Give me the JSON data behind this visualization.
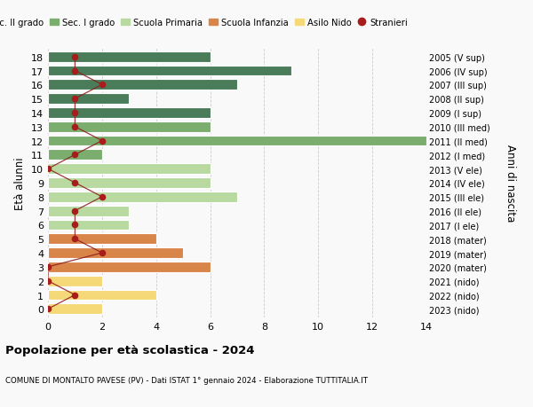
{
  "ages": [
    18,
    17,
    16,
    15,
    14,
    13,
    12,
    11,
    10,
    9,
    8,
    7,
    6,
    5,
    4,
    3,
    2,
    1,
    0
  ],
  "years": [
    "2005 (V sup)",
    "2006 (IV sup)",
    "2007 (III sup)",
    "2008 (II sup)",
    "2009 (I sup)",
    "2010 (III med)",
    "2011 (II med)",
    "2012 (I med)",
    "2013 (V ele)",
    "2014 (IV ele)",
    "2015 (III ele)",
    "2016 (II ele)",
    "2017 (I ele)",
    "2018 (mater)",
    "2019 (mater)",
    "2020 (mater)",
    "2021 (nido)",
    "2022 (nido)",
    "2023 (nido)"
  ],
  "bar_values": [
    6,
    9,
    7,
    3,
    6,
    6,
    14,
    2,
    6,
    6,
    7,
    3,
    3,
    4,
    5,
    6,
    2,
    4,
    2
  ],
  "bar_colors": [
    "#4a7c59",
    "#4a7c59",
    "#4a7c59",
    "#4a7c59",
    "#4a7c59",
    "#7aad6e",
    "#7aad6e",
    "#7aad6e",
    "#b8d9a0",
    "#b8d9a0",
    "#b8d9a0",
    "#b8d9a0",
    "#b8d9a0",
    "#d9854a",
    "#d9854a",
    "#d9854a",
    "#f5d878",
    "#f5d878",
    "#f5d878"
  ],
  "stranieri_x": [
    1,
    1,
    2,
    1,
    1,
    1,
    2,
    1,
    0,
    1,
    2,
    1,
    1,
    1,
    2,
    0,
    0,
    1,
    0
  ],
  "legend_labels": [
    "Sec. II grado",
    "Sec. I grado",
    "Scuola Primaria",
    "Scuola Infanzia",
    "Asilo Nido",
    "Stranieri"
  ],
  "legend_colors": [
    "#4a7c59",
    "#7aad6e",
    "#b8d9a0",
    "#d9854a",
    "#f5d878",
    "#a81c1c"
  ],
  "title": "Popolazione per età scolastica - 2024",
  "subtitle": "COMUNE DI MONTALTO PAVESE (PV) - Dati ISTAT 1° gennaio 2024 - Elaborazione TUTTITALIA.IT",
  "ylabel": "Età alunni",
  "right_ylabel": "Anni di nascita",
  "xlim": [
    0,
    14
  ],
  "xticks": [
    0,
    2,
    4,
    6,
    8,
    10,
    12,
    14
  ],
  "background_color": "#f9f9f9",
  "grid_color": "#cccccc",
  "stranieri_line_color": "#8b1a1a",
  "stranieri_marker_color": "#a81c1c"
}
